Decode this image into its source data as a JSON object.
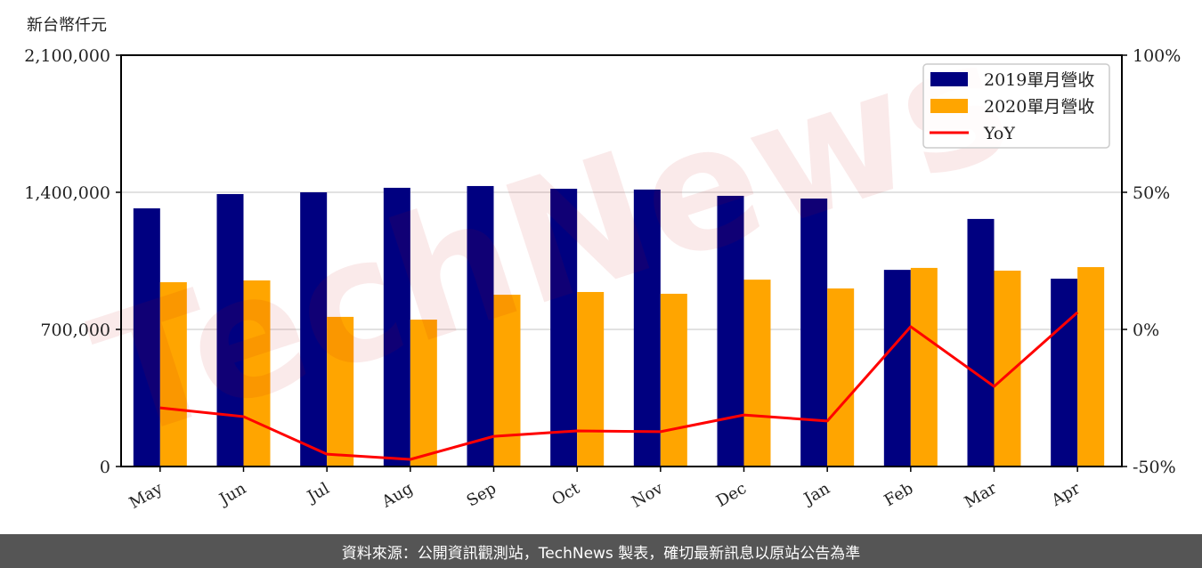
{
  "unit_label": "新台幣仟元",
  "footer": "資料來源：公開資訊觀測站，TechNews 製表，確切最新訊息以原站公告為準",
  "watermark": "TechNews",
  "colors": {
    "bar_2019": "#000080",
    "bar_2020": "#FFA500",
    "yoy": "#FF0000",
    "grid": "#d9d9d9",
    "footer_bg": "#555555"
  },
  "chart_data": {
    "type": "bar",
    "title": "",
    "xlabel": "",
    "ylabel": "新台幣仟元",
    "y2label": "",
    "categories": [
      "May",
      "Jun",
      "Jul",
      "Aug",
      "Sep",
      "Oct",
      "Nov",
      "Dec",
      "Jan",
      "Feb",
      "Mar",
      "Apr"
    ],
    "series": [
      {
        "name": "2019單月營收",
        "type": "bar",
        "axis": "left",
        "color": "#000080",
        "values": [
          1318000,
          1391000,
          1400000,
          1423000,
          1432000,
          1418000,
          1414000,
          1382000,
          1368000,
          1004000,
          1264000,
          959000
        ]
      },
      {
        "name": "2020單月營收",
        "type": "bar",
        "axis": "left",
        "color": "#FFA500",
        "values": [
          941000,
          950000,
          764000,
          750000,
          877000,
          891000,
          882000,
          954000,
          909000,
          1014000,
          1000000,
          1018000
        ]
      },
      {
        "name": "YoY",
        "type": "line",
        "axis": "right",
        "color": "#FF0000",
        "values": [
          -28.6,
          -31.8,
          -45.5,
          -47.4,
          -39.0,
          -37.0,
          -37.3,
          -31.2,
          -33.4,
          1.0,
          -20.8,
          6.2
        ]
      }
    ],
    "ylim": [
      0,
      2100000
    ],
    "y2lim": [
      -50,
      100
    ],
    "yticks": [
      "0",
      "700,000",
      "1,400,000",
      "2,100,000"
    ],
    "ytick_values": [
      0,
      700000,
      1400000,
      2100000
    ],
    "y2ticks": [
      "-50%",
      "0%",
      "50%",
      "100%"
    ],
    "y2tick_values": [
      -50,
      0,
      50,
      100
    ],
    "grid": true,
    "legend_position": "upper right",
    "legend": [
      "2019單月營收",
      "2020單月營收",
      "YoY"
    ]
  }
}
